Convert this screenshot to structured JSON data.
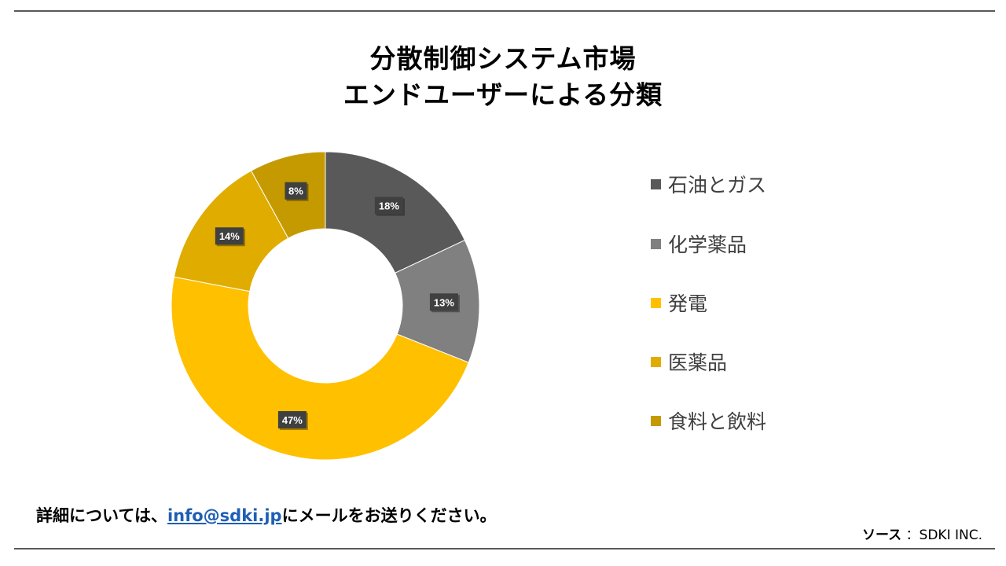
{
  "title": {
    "line1": "分散制御システム市場",
    "line2": "エンドユーザーによる分類"
  },
  "chart_data": {
    "type": "pie",
    "categories": [
      "石油とガス",
      "化学薬品",
      "発電",
      "医薬品",
      "食料と飲料"
    ],
    "values": [
      18,
      13,
      47,
      14,
      8
    ],
    "data_labels": [
      "18%",
      "13%",
      "47%",
      "14%",
      "8%"
    ],
    "colors": [
      "#595959",
      "#808080",
      "#ffc000",
      "#e0ac00",
      "#c59a00"
    ],
    "donut": true,
    "legend_position": "right"
  },
  "footer": {
    "prefix": "詳細については、",
    "email": "info@sdki.jp",
    "suffix": "にメールをお送りください。"
  },
  "source": {
    "label": "ソース",
    "value": "：SDKI INC."
  }
}
